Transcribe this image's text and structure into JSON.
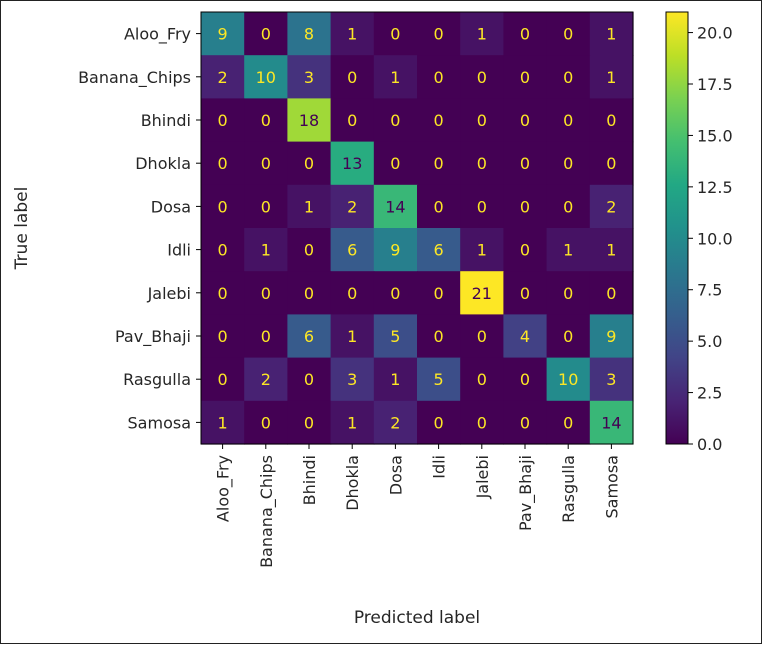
{
  "chart_data": {
    "type": "heatmap",
    "title": "",
    "xlabel": "Predicted label",
    "ylabel": "True label",
    "x_categories": [
      "Aloo_Fry",
      "Banana_Chips",
      "Bhindi",
      "Dhokla",
      "Dosa",
      "Idli",
      "Jalebi",
      "Pav_Bhaji",
      "Rasgulla",
      "Samosa"
    ],
    "y_categories": [
      "Aloo_Fry",
      "Banana_Chips",
      "Bhindi",
      "Dhokla",
      "Dosa",
      "Idli",
      "Jalebi",
      "Pav_Bhaji",
      "Rasgulla",
      "Samosa"
    ],
    "values": [
      [
        9,
        0,
        8,
        1,
        0,
        0,
        1,
        0,
        0,
        1
      ],
      [
        2,
        10,
        3,
        0,
        1,
        0,
        0,
        0,
        0,
        1
      ],
      [
        0,
        0,
        18,
        0,
        0,
        0,
        0,
        0,
        0,
        0
      ],
      [
        0,
        0,
        0,
        13,
        0,
        0,
        0,
        0,
        0,
        0
      ],
      [
        0,
        0,
        1,
        2,
        14,
        0,
        0,
        0,
        0,
        2
      ],
      [
        0,
        1,
        0,
        6,
        9,
        6,
        1,
        0,
        1,
        1
      ],
      [
        0,
        0,
        0,
        0,
        0,
        0,
        21,
        0,
        0,
        0
      ],
      [
        0,
        0,
        6,
        1,
        5,
        0,
        0,
        4,
        0,
        9
      ],
      [
        0,
        2,
        0,
        3,
        1,
        5,
        0,
        0,
        10,
        3
      ],
      [
        1,
        0,
        0,
        1,
        2,
        0,
        0,
        0,
        0,
        14
      ]
    ],
    "colormap": "viridis",
    "vmin": 0,
    "vmax": 21,
    "colorbar_ticks": [
      "0.0",
      "2.5",
      "5.0",
      "7.5",
      "10.0",
      "12.5",
      "15.0",
      "17.5",
      "20.0"
    ],
    "colorbar_tick_values": [
      0,
      2.5,
      5,
      7.5,
      10,
      12.5,
      15,
      17.5,
      20
    ],
    "grid": false
  }
}
